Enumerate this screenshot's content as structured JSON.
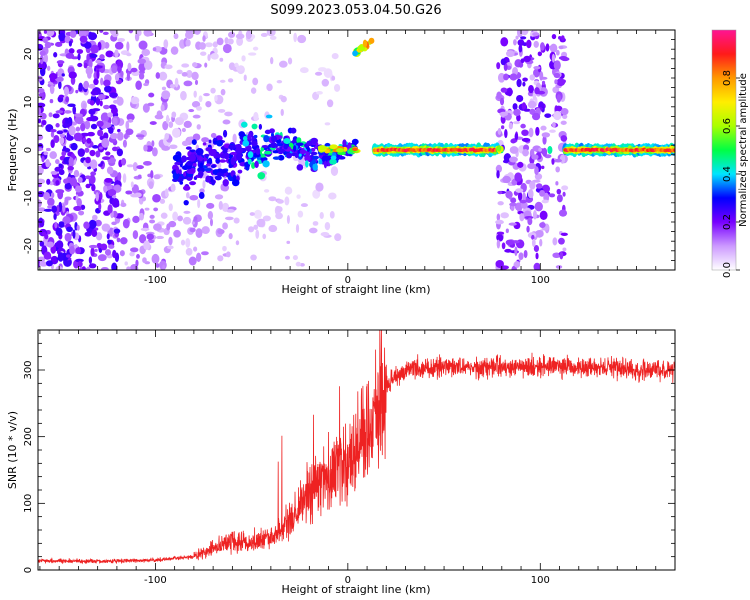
{
  "title": "S099.2023.053.04.50.G26",
  "chart_data": [
    {
      "type": "heatmap",
      "xlabel": "Height of straight line (km)",
      "ylabel": "Frequency (Hz)",
      "xlim": [
        -161,
        170
      ],
      "ylim": [
        -25,
        25
      ],
      "xticks": [
        -100,
        0,
        100
      ],
      "yticks": [
        -20,
        -10,
        0,
        10,
        20
      ],
      "colorbar": {
        "label": "Normalized spectral amplitude",
        "range": [
          0,
          1
        ],
        "ticks": [
          "0.0",
          "0.2",
          "0.4",
          "0.6",
          "0.8"
        ],
        "colors": [
          "#ffffff",
          "#cc99ff",
          "#7700ff",
          "#0000ff",
          "#00e5ff",
          "#00ff44",
          "#aaff00",
          "#ffee00",
          "#ff9900",
          "#ff1a1a",
          "#ff1493"
        ]
      },
      "features": [
        {
          "label": "signal trace",
          "x_start": -90,
          "x_end": 4,
          "freq_start": -6,
          "freq_end": 0
        },
        {
          "label": "strong carrier",
          "x_start": 14,
          "x_end": 170,
          "freq": 0
        },
        {
          "label": "aliased branch",
          "x_start": 3,
          "x_end": 13,
          "freq_start": 20,
          "freq_end": 23
        }
      ]
    },
    {
      "type": "line",
      "xlabel": "Height of straight line (km)",
      "ylabel": "SNR (10 * v/v)",
      "xlim": [
        -161,
        170
      ],
      "ylim": [
        0,
        360
      ],
      "xticks": [
        -100,
        0,
        100
      ],
      "yticks": [
        0,
        100,
        200,
        300
      ],
      "color": "#ee2222",
      "approx_profile": [
        {
          "x": -161,
          "y": 14
        },
        {
          "x": -130,
          "y": 13
        },
        {
          "x": -100,
          "y": 15
        },
        {
          "x": -80,
          "y": 20
        },
        {
          "x": -70,
          "y": 32
        },
        {
          "x": -60,
          "y": 45
        },
        {
          "x": -50,
          "y": 40
        },
        {
          "x": -40,
          "y": 48
        },
        {
          "x": -30,
          "y": 70
        },
        {
          "x": -20,
          "y": 120
        },
        {
          "x": -10,
          "y": 140
        },
        {
          "x": 0,
          "y": 160
        },
        {
          "x": 10,
          "y": 200
        },
        {
          "x": 20,
          "y": 280
        },
        {
          "x": 30,
          "y": 300
        },
        {
          "x": 50,
          "y": 305
        },
        {
          "x": 80,
          "y": 305
        },
        {
          "x": 100,
          "y": 305
        },
        {
          "x": 130,
          "y": 305
        },
        {
          "x": 150,
          "y": 300
        },
        {
          "x": 170,
          "y": 300
        }
      ]
    }
  ]
}
